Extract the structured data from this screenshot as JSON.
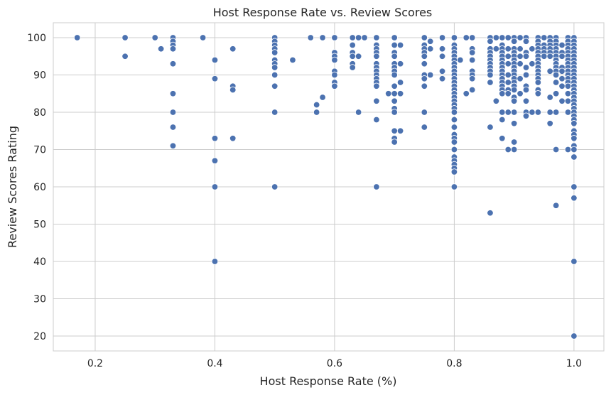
{
  "chart_data": {
    "type": "scatter",
    "title": "Host Response Rate vs. Review Scores",
    "xlabel": "Host Response Rate (%)",
    "ylabel": "Review Scores Rating",
    "xlim": [
      0.13,
      1.05
    ],
    "ylim": [
      16,
      104
    ],
    "xticks": [
      "0.2",
      "0.4",
      "0.6",
      "0.8",
      "1.0"
    ],
    "yticks": [
      "20",
      "30",
      "40",
      "50",
      "60",
      "70",
      "80",
      "90",
      "100"
    ],
    "grid": true,
    "point_color": "#4c72b0",
    "points": [
      [
        0.17,
        100
      ],
      [
        0.25,
        100
      ],
      [
        0.25,
        95
      ],
      [
        0.3,
        100
      ],
      [
        0.31,
        97
      ],
      [
        0.33,
        100
      ],
      [
        0.33,
        99
      ],
      [
        0.33,
        98
      ],
      [
        0.33,
        97
      ],
      [
        0.33,
        93
      ],
      [
        0.33,
        85
      ],
      [
        0.33,
        80
      ],
      [
        0.33,
        76
      ],
      [
        0.33,
        71
      ],
      [
        0.38,
        100
      ],
      [
        0.4,
        94
      ],
      [
        0.4,
        89
      ],
      [
        0.4,
        73
      ],
      [
        0.4,
        67
      ],
      [
        0.4,
        60
      ],
      [
        0.4,
        40
      ],
      [
        0.43,
        97
      ],
      [
        0.43,
        87
      ],
      [
        0.43,
        86
      ],
      [
        0.43,
        73
      ],
      [
        0.5,
        100
      ],
      [
        0.5,
        99
      ],
      [
        0.5,
        98
      ],
      [
        0.5,
        97
      ],
      [
        0.5,
        96
      ],
      [
        0.5,
        94
      ],
      [
        0.5,
        93
      ],
      [
        0.5,
        92
      ],
      [
        0.5,
        90
      ],
      [
        0.5,
        87
      ],
      [
        0.5,
        80
      ],
      [
        0.5,
        60
      ],
      [
        0.53,
        94
      ],
      [
        0.56,
        100
      ],
      [
        0.57,
        82
      ],
      [
        0.57,
        80
      ],
      [
        0.58,
        100
      ],
      [
        0.58,
        84
      ],
      [
        0.6,
        100
      ],
      [
        0.6,
        96
      ],
      [
        0.6,
        95
      ],
      [
        0.6,
        94
      ],
      [
        0.6,
        91
      ],
      [
        0.6,
        90
      ],
      [
        0.6,
        88
      ],
      [
        0.6,
        87
      ],
      [
        0.63,
        100
      ],
      [
        0.63,
        98
      ],
      [
        0.63,
        96
      ],
      [
        0.63,
        95
      ],
      [
        0.63,
        93
      ],
      [
        0.63,
        92
      ],
      [
        0.64,
        100
      ],
      [
        0.64,
        95
      ],
      [
        0.64,
        80
      ],
      [
        0.65,
        100
      ],
      [
        0.67,
        100
      ],
      [
        0.67,
        98
      ],
      [
        0.67,
        97
      ],
      [
        0.67,
        96
      ],
      [
        0.67,
        95
      ],
      [
        0.67,
        93
      ],
      [
        0.67,
        92
      ],
      [
        0.67,
        91
      ],
      [
        0.67,
        90
      ],
      [
        0.67,
        89
      ],
      [
        0.67,
        88
      ],
      [
        0.67,
        87
      ],
      [
        0.67,
        83
      ],
      [
        0.67,
        78
      ],
      [
        0.67,
        60
      ],
      [
        0.69,
        85
      ],
      [
        0.7,
        100
      ],
      [
        0.7,
        98
      ],
      [
        0.7,
        96
      ],
      [
        0.7,
        95
      ],
      [
        0.7,
        93
      ],
      [
        0.7,
        92
      ],
      [
        0.7,
        91
      ],
      [
        0.7,
        90
      ],
      [
        0.7,
        87
      ],
      [
        0.7,
        85
      ],
      [
        0.7,
        83
      ],
      [
        0.7,
        81
      ],
      [
        0.7,
        80
      ],
      [
        0.7,
        75
      ],
      [
        0.7,
        73
      ],
      [
        0.7,
        72
      ],
      [
        0.71,
        98
      ],
      [
        0.71,
        93
      ],
      [
        0.71,
        88
      ],
      [
        0.71,
        85
      ],
      [
        0.71,
        75
      ],
      [
        0.75,
        100
      ],
      [
        0.75,
        98
      ],
      [
        0.75,
        97
      ],
      [
        0.75,
        96
      ],
      [
        0.75,
        95
      ],
      [
        0.75,
        93
      ],
      [
        0.75,
        90
      ],
      [
        0.75,
        89
      ],
      [
        0.75,
        87
      ],
      [
        0.75,
        80
      ],
      [
        0.75,
        76
      ],
      [
        0.76,
        99
      ],
      [
        0.76,
        97
      ],
      [
        0.76,
        90
      ],
      [
        0.78,
        100
      ],
      [
        0.78,
        97
      ],
      [
        0.78,
        95
      ],
      [
        0.78,
        91
      ],
      [
        0.78,
        89
      ],
      [
        0.8,
        100
      ],
      [
        0.8,
        98
      ],
      [
        0.8,
        97
      ],
      [
        0.8,
        96
      ],
      [
        0.8,
        95
      ],
      [
        0.8,
        94
      ],
      [
        0.8,
        93
      ],
      [
        0.8,
        92
      ],
      [
        0.8,
        91
      ],
      [
        0.8,
        90
      ],
      [
        0.8,
        89
      ],
      [
        0.8,
        88
      ],
      [
        0.8,
        87
      ],
      [
        0.8,
        86
      ],
      [
        0.8,
        85
      ],
      [
        0.8,
        84
      ],
      [
        0.8,
        83
      ],
      [
        0.8,
        82
      ],
      [
        0.8,
        81
      ],
      [
        0.8,
        80
      ],
      [
        0.8,
        78
      ],
      [
        0.8,
        76
      ],
      [
        0.8,
        74
      ],
      [
        0.8,
        73
      ],
      [
        0.8,
        72
      ],
      [
        0.8,
        70
      ],
      [
        0.8,
        68
      ],
      [
        0.8,
        67
      ],
      [
        0.8,
        66
      ],
      [
        0.8,
        65
      ],
      [
        0.8,
        64
      ],
      [
        0.8,
        60
      ],
      [
        0.81,
        94
      ],
      [
        0.82,
        100
      ],
      [
        0.82,
        85
      ],
      [
        0.83,
        100
      ],
      [
        0.83,
        97
      ],
      [
        0.83,
        96
      ],
      [
        0.83,
        94
      ],
      [
        0.83,
        91
      ],
      [
        0.83,
        90
      ],
      [
        0.83,
        89
      ],
      [
        0.83,
        86
      ],
      [
        0.86,
        100
      ],
      [
        0.86,
        99
      ],
      [
        0.86,
        97
      ],
      [
        0.86,
        96
      ],
      [
        0.86,
        95
      ],
      [
        0.86,
        94
      ],
      [
        0.86,
        93
      ],
      [
        0.86,
        92
      ],
      [
        0.86,
        91
      ],
      [
        0.86,
        90
      ],
      [
        0.86,
        88
      ],
      [
        0.86,
        76
      ],
      [
        0.86,
        53
      ],
      [
        0.87,
        100
      ],
      [
        0.87,
        97
      ],
      [
        0.87,
        83
      ],
      [
        0.88,
        100
      ],
      [
        0.88,
        98
      ],
      [
        0.88,
        97
      ],
      [
        0.88,
        96
      ],
      [
        0.88,
        95
      ],
      [
        0.88,
        94
      ],
      [
        0.88,
        93
      ],
      [
        0.88,
        92
      ],
      [
        0.88,
        91
      ],
      [
        0.88,
        90
      ],
      [
        0.88,
        89
      ],
      [
        0.88,
        88
      ],
      [
        0.88,
        87
      ],
      [
        0.88,
        86
      ],
      [
        0.88,
        85
      ],
      [
        0.88,
        80
      ],
      [
        0.88,
        78
      ],
      [
        0.88,
        73
      ],
      [
        0.89,
        100
      ],
      [
        0.89,
        97
      ],
      [
        0.89,
        95
      ],
      [
        0.89,
        93
      ],
      [
        0.89,
        90
      ],
      [
        0.89,
        88
      ],
      [
        0.89,
        86
      ],
      [
        0.89,
        85
      ],
      [
        0.89,
        80
      ],
      [
        0.89,
        70
      ],
      [
        0.9,
        100
      ],
      [
        0.9,
        99
      ],
      [
        0.9,
        97
      ],
      [
        0.9,
        96
      ],
      [
        0.9,
        95
      ],
      [
        0.9,
        94
      ],
      [
        0.9,
        93
      ],
      [
        0.9,
        92
      ],
      [
        0.9,
        91
      ],
      [
        0.9,
        90
      ],
      [
        0.9,
        89
      ],
      [
        0.9,
        88
      ],
      [
        0.9,
        87
      ],
      [
        0.9,
        86
      ],
      [
        0.9,
        84
      ],
      [
        0.9,
        83
      ],
      [
        0.9,
        80
      ],
      [
        0.9,
        77
      ],
      [
        0.9,
        72
      ],
      [
        0.9,
        70
      ],
      [
        0.91,
        100
      ],
      [
        0.91,
        97
      ],
      [
        0.91,
        95
      ],
      [
        0.91,
        93
      ],
      [
        0.91,
        89
      ],
      [
        0.91,
        85
      ],
      [
        0.92,
        100
      ],
      [
        0.92,
        99
      ],
      [
        0.92,
        96
      ],
      [
        0.92,
        95
      ],
      [
        0.92,
        92
      ],
      [
        0.92,
        90
      ],
      [
        0.92,
        87
      ],
      [
        0.92,
        86
      ],
      [
        0.92,
        83
      ],
      [
        0.92,
        80
      ],
      [
        0.92,
        79
      ],
      [
        0.93,
        97
      ],
      [
        0.93,
        93
      ],
      [
        0.93,
        80
      ],
      [
        0.94,
        100
      ],
      [
        0.94,
        99
      ],
      [
        0.94,
        98
      ],
      [
        0.94,
        97
      ],
      [
        0.94,
        96
      ],
      [
        0.94,
        95
      ],
      [
        0.94,
        94
      ],
      [
        0.94,
        93
      ],
      [
        0.94,
        92
      ],
      [
        0.94,
        91
      ],
      [
        0.94,
        90
      ],
      [
        0.94,
        89
      ],
      [
        0.94,
        88
      ],
      [
        0.94,
        86
      ],
      [
        0.94,
        85
      ],
      [
        0.94,
        80
      ],
      [
        0.95,
        100
      ],
      [
        0.95,
        98
      ],
      [
        0.95,
        97
      ],
      [
        0.95,
        96
      ],
      [
        0.95,
        95
      ],
      [
        0.96,
        100
      ],
      [
        0.96,
        99
      ],
      [
        0.96,
        98
      ],
      [
        0.96,
        97
      ],
      [
        0.96,
        96
      ],
      [
        0.96,
        95
      ],
      [
        0.96,
        91
      ],
      [
        0.96,
        84
      ],
      [
        0.96,
        80
      ],
      [
        0.96,
        77
      ],
      [
        0.97,
        100
      ],
      [
        0.97,
        99
      ],
      [
        0.97,
        98
      ],
      [
        0.97,
        97
      ],
      [
        0.97,
        96
      ],
      [
        0.97,
        95
      ],
      [
        0.97,
        94
      ],
      [
        0.97,
        93
      ],
      [
        0.97,
        92
      ],
      [
        0.97,
        91
      ],
      [
        0.97,
        90
      ],
      [
        0.97,
        88
      ],
      [
        0.97,
        85
      ],
      [
        0.97,
        80
      ],
      [
        0.97,
        70
      ],
      [
        0.97,
        55
      ],
      [
        0.98,
        98
      ],
      [
        0.98,
        96
      ],
      [
        0.98,
        95
      ],
      [
        0.98,
        92
      ],
      [
        0.98,
        91
      ],
      [
        0.98,
        89
      ],
      [
        0.98,
        87
      ],
      [
        0.98,
        83
      ],
      [
        0.99,
        100
      ],
      [
        0.99,
        99
      ],
      [
        0.99,
        98
      ],
      [
        0.99,
        97
      ],
      [
        0.99,
        96
      ],
      [
        0.99,
        95
      ],
      [
        0.99,
        94
      ],
      [
        0.99,
        93
      ],
      [
        0.99,
        92
      ],
      [
        0.99,
        91
      ],
      [
        0.99,
        90
      ],
      [
        0.99,
        89
      ],
      [
        0.99,
        88
      ],
      [
        0.99,
        87
      ],
      [
        0.99,
        85
      ],
      [
        0.99,
        83
      ],
      [
        0.99,
        80
      ],
      [
        0.99,
        70
      ],
      [
        1.0,
        100
      ],
      [
        1.0,
        99
      ],
      [
        1.0,
        98
      ],
      [
        1.0,
        97
      ],
      [
        1.0,
        96
      ],
      [
        1.0,
        95
      ],
      [
        1.0,
        94
      ],
      [
        1.0,
        93
      ],
      [
        1.0,
        92
      ],
      [
        1.0,
        91
      ],
      [
        1.0,
        90
      ],
      [
        1.0,
        89
      ],
      [
        1.0,
        88
      ],
      [
        1.0,
        87
      ],
      [
        1.0,
        86
      ],
      [
        1.0,
        85
      ],
      [
        1.0,
        84
      ],
      [
        1.0,
        83
      ],
      [
        1.0,
        82
      ],
      [
        1.0,
        81
      ],
      [
        1.0,
        80
      ],
      [
        1.0,
        79
      ],
      [
        1.0,
        78
      ],
      [
        1.0,
        77
      ],
      [
        1.0,
        75
      ],
      [
        1.0,
        74
      ],
      [
        1.0,
        73
      ],
      [
        1.0,
        71
      ],
      [
        1.0,
        70
      ],
      [
        1.0,
        68
      ],
      [
        1.0,
        60
      ],
      [
        1.0,
        57
      ],
      [
        1.0,
        40
      ],
      [
        1.0,
        20
      ]
    ]
  }
}
